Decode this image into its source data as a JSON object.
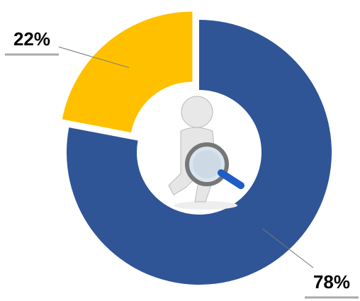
{
  "chart_data": {
    "type": "donut",
    "values": [
      78,
      22
    ],
    "value_labels": [
      "78%",
      "22%"
    ],
    "colors": [
      "#2f5597",
      "#ffc000"
    ],
    "exploded": [
      false,
      true
    ]
  }
}
